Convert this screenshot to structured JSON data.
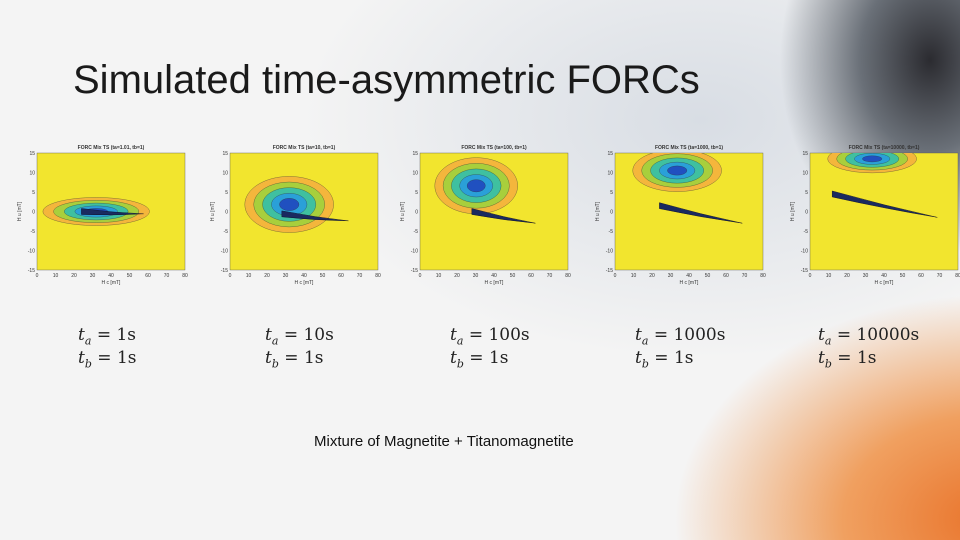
{
  "title": "Simulated time-asymmetric FORCs",
  "caption": "Mixture of Magnetite + Titanomagnetite",
  "axes": {
    "x_label": "H c [mT]",
    "y_label": "H u [mT]",
    "y_ticks": [
      "15",
      "10",
      "5",
      "0",
      "-5",
      "-10",
      "-15"
    ],
    "x_ticks": [
      "0",
      "10",
      "20",
      "30",
      "40",
      "50",
      "60",
      "70",
      "80"
    ]
  },
  "panels": [
    {
      "plot_title": "FORC Mix TS (ta=1.01, tb=1)",
      "ta": {
        "var": "t",
        "sub": "a",
        "eq": "= 1s"
      },
      "tb": {
        "var": "t",
        "sub": "b",
        "eq": "= 1s"
      }
    },
    {
      "plot_title": "FORC Mix TS (ta=10, tb=1)",
      "ta": {
        "var": "t",
        "sub": "a",
        "eq": "= 10s"
      },
      "tb": {
        "var": "t",
        "sub": "b",
        "eq": "= 1s"
      }
    },
    {
      "plot_title": "FORC Mix TS (ta=100, tb=1)",
      "ta": {
        "var": "t",
        "sub": "a",
        "eq": "= 100s"
      },
      "tb": {
        "var": "t",
        "sub": "b",
        "eq": "= 1s"
      }
    },
    {
      "plot_title": "FORC Mix TS (ta=1000, tb=1)",
      "ta": {
        "var": "t",
        "sub": "a",
        "eq": "= 1000s"
      },
      "tb": {
        "var": "t",
        "sub": "b",
        "eq": "= 1s"
      }
    },
    {
      "plot_title": "FORC Mix TS (ta=10000, tb=1)",
      "ta": {
        "var": "t",
        "sub": "a",
        "eq": "= 10000s"
      },
      "tb": {
        "var": "t",
        "sub": "b",
        "eq": "= 1s"
      }
    }
  ]
}
